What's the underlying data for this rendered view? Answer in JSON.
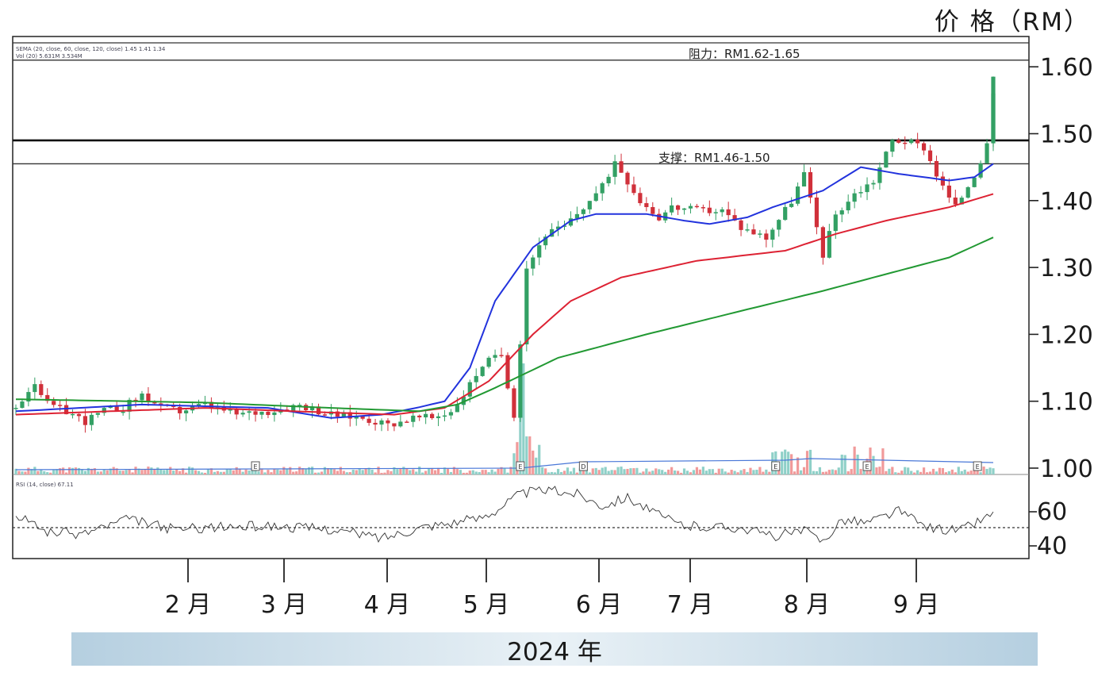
{
  "header": {
    "price_title": "价 格（RM）"
  },
  "footer": {
    "year_label": "2024 年"
  },
  "chart_data": {
    "type": "candlestick",
    "y_axis": {
      "ticks": [
        1.0,
        1.1,
        1.2,
        1.3,
        1.4,
        1.5,
        1.6
      ],
      "labels": [
        "1.00",
        "1.10",
        "1.20",
        "1.30",
        "1.40",
        "1.50",
        "1.60"
      ],
      "ylim": [
        0.99,
        1.65
      ]
    },
    "x_axis": {
      "months": [
        "2 月",
        "3 月",
        "4 月",
        "5 月",
        "6 月",
        "7 月",
        "8 月",
        "9 月"
      ]
    },
    "annotations": {
      "resistance": "阻力：RM1.62-1.65",
      "support": "支撑：RM1.46-1.50"
    },
    "levels": {
      "resistance": 1.61,
      "support_high": 1.49,
      "support_low": 1.455
    },
    "legend_lines": [
      "SEMA (20, close, 60, close, 120, close) 1.45 1.41 1.34",
      "Vol (20) 5.631M 3.534M"
    ],
    "markers": [
      "E",
      "E",
      "D",
      "E",
      "E",
      "E"
    ],
    "ma_series": [
      {
        "color": "#2233dd",
        "points": [
          [
            0,
            1.085
          ],
          [
            40,
            1.095
          ],
          [
            80,
            1.09
          ],
          [
            100,
            1.075
          ],
          [
            116,
            1.08
          ],
          [
            127,
            1.09
          ],
          [
            136,
            1.1
          ],
          [
            144,
            1.15
          ],
          [
            152,
            1.25
          ],
          [
            164,
            1.33
          ],
          [
            176,
            1.37
          ],
          [
            184,
            1.38
          ],
          [
            200,
            1.38
          ],
          [
            212,
            1.37
          ],
          [
            220,
            1.365
          ],
          [
            232,
            1.375
          ],
          [
            240,
            1.39
          ],
          [
            256,
            1.415
          ],
          [
            268,
            1.45
          ],
          [
            280,
            1.44
          ],
          [
            296,
            1.43
          ],
          [
            304,
            1.435
          ],
          [
            310,
            1.455
          ]
        ]
      },
      {
        "color": "#dd2233",
        "points": [
          [
            0,
            1.08
          ],
          [
            60,
            1.09
          ],
          [
            100,
            1.083
          ],
          [
            120,
            1.08
          ],
          [
            136,
            1.09
          ],
          [
            150,
            1.13
          ],
          [
            164,
            1.2
          ],
          [
            176,
            1.25
          ],
          [
            192,
            1.285
          ],
          [
            216,
            1.31
          ],
          [
            244,
            1.325
          ],
          [
            260,
            1.35
          ],
          [
            276,
            1.37
          ],
          [
            296,
            1.39
          ],
          [
            310,
            1.41
          ]
        ]
      },
      {
        "color": "#229933",
        "points": [
          [
            0,
            1.103
          ],
          [
            60,
            1.098
          ],
          [
            100,
            1.09
          ],
          [
            128,
            1.085
          ],
          [
            140,
            1.095
          ],
          [
            152,
            1.12
          ],
          [
            172,
            1.165
          ],
          [
            200,
            1.2
          ],
          [
            230,
            1.235
          ],
          [
            256,
            1.265
          ],
          [
            276,
            1.29
          ],
          [
            296,
            1.315
          ],
          [
            310,
            1.345
          ]
        ]
      }
    ],
    "ohlc_anchors": [
      [
        0,
        1.09
      ],
      [
        6,
        1.13
      ],
      [
        10,
        1.095
      ],
      [
        16,
        1.085
      ],
      [
        22,
        1.07
      ],
      [
        28,
        1.085
      ],
      [
        34,
        1.09
      ],
      [
        40,
        1.11
      ],
      [
        46,
        1.09
      ],
      [
        52,
        1.085
      ],
      [
        60,
        1.095
      ],
      [
        70,
        1.08
      ],
      [
        80,
        1.085
      ],
      [
        90,
        1.095
      ],
      [
        100,
        1.08
      ],
      [
        110,
        1.075
      ],
      [
        118,
        1.065
      ],
      [
        126,
        1.075
      ],
      [
        132,
        1.075
      ],
      [
        138,
        1.085
      ],
      [
        142,
        1.11
      ],
      [
        148,
        1.155
      ],
      [
        154,
        1.17
      ],
      [
        158,
        1.08
      ],
      [
        162,
        1.3
      ],
      [
        168,
        1.35
      ],
      [
        174,
        1.36
      ],
      [
        180,
        1.39
      ],
      [
        186,
        1.42
      ],
      [
        190,
        1.46
      ],
      [
        194,
        1.43
      ],
      [
        198,
        1.4
      ],
      [
        204,
        1.375
      ],
      [
        208,
        1.39
      ],
      [
        216,
        1.385
      ],
      [
        224,
        1.385
      ],
      [
        230,
        1.36
      ],
      [
        238,
        1.345
      ],
      [
        246,
        1.4
      ],
      [
        250,
        1.44
      ],
      [
        256,
        1.32
      ],
      [
        260,
        1.38
      ],
      [
        266,
        1.41
      ],
      [
        272,
        1.43
      ],
      [
        278,
        1.49
      ],
      [
        282,
        1.49
      ],
      [
        288,
        1.48
      ],
      [
        294,
        1.42
      ],
      [
        298,
        1.39
      ],
      [
        304,
        1.44
      ],
      [
        308,
        1.48
      ],
      [
        310,
        1.58
      ]
    ],
    "rsi": {
      "label": "RSI (14, close) 67.11",
      "value": 67.11,
      "ticks": [
        "60",
        "40"
      ],
      "midline": 50
    }
  }
}
